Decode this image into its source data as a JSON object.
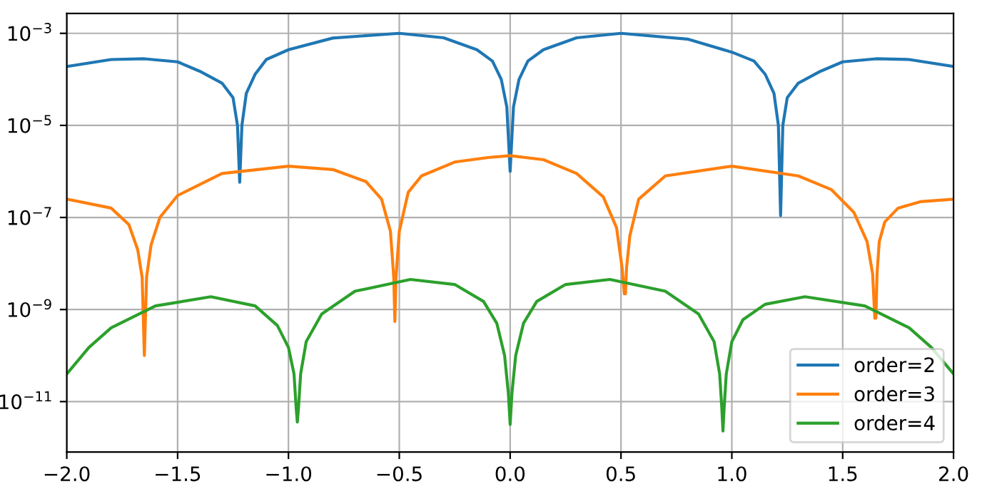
{
  "chart_data": {
    "type": "line",
    "xlim": [
      -2.0,
      2.0
    ],
    "xticks": [
      {
        "value": -2.0,
        "label": "−2.0"
      },
      {
        "value": -1.5,
        "label": "−1.5"
      },
      {
        "value": -1.0,
        "label": "−1.0"
      },
      {
        "value": -0.5,
        "label": "−0.5"
      },
      {
        "value": 0.0,
        "label": "0.0"
      },
      {
        "value": 0.5,
        "label": "0.5"
      },
      {
        "value": 1.0,
        "label": "1.0"
      },
      {
        "value": 1.5,
        "label": "1.5"
      },
      {
        "value": 2.0,
        "label": "2.0"
      }
    ],
    "ylim": [
      8e-13,
      0.0027
    ],
    "log": "y",
    "yticks": [
      {
        "value": 0.001,
        "label": "10$^{−3}$"
      },
      {
        "value": 1e-05,
        "label": "10$^{−5}$"
      },
      {
        "value": 1e-07,
        "label": "10$^{−7}$"
      },
      {
        "value": 1e-09,
        "label": "10$^{−9}$"
      },
      {
        "value": 1e-11,
        "label": "10$^{−11}$"
      }
    ],
    "grid": true,
    "legend": "bottom right",
    "line_style": "solid",
    "marker": "none",
    "series": [
      {
        "name": "order=2",
        "color": "#1f77b4",
        "x": [
          -2.0,
          -1.8,
          -1.65,
          -1.5,
          -1.4,
          -1.3,
          -1.25,
          -1.23,
          -1.22,
          -1.21,
          -1.19,
          -1.15,
          -1.1,
          -1.0,
          -0.8,
          -0.5,
          -0.3,
          -0.15,
          -0.08,
          -0.04,
          -0.015,
          0.0,
          0.015,
          0.04,
          0.08,
          0.15,
          0.3,
          0.5,
          0.8,
          1.0,
          1.1,
          1.15,
          1.19,
          1.21,
          1.22,
          1.23,
          1.25,
          1.3,
          1.4,
          1.5,
          1.65,
          1.8,
          2.0
        ],
        "values": [
          0.00019,
          0.00027,
          0.00028,
          0.00024,
          0.00015,
          8.3e-05,
          4e-05,
          1e-05,
          5.8e-07,
          1e-05,
          5e-05,
          0.00013,
          0.00027,
          0.00044,
          0.00079,
          0.001,
          0.0008,
          0.00044,
          0.00025,
          0.0001,
          2.5e-05,
          1e-06,
          2.5e-05,
          0.0001,
          0.00025,
          0.00044,
          0.0008,
          0.001,
          0.00075,
          0.00039,
          0.00025,
          0.00013,
          5e-05,
          1e-05,
          1.1e-07,
          1e-05,
          4e-05,
          8.3e-05,
          0.00015,
          0.00024,
          0.00028,
          0.00027,
          0.00019
        ]
      },
      {
        "name": "order=3",
        "color": "#ff7f0e",
        "x": [
          -2.0,
          -1.8,
          -1.72,
          -1.68,
          -1.66,
          -1.65,
          -1.64,
          -1.62,
          -1.58,
          -1.5,
          -1.3,
          -1.0,
          -0.8,
          -0.65,
          -0.58,
          -0.54,
          -0.525,
          -0.52,
          -0.515,
          -0.5,
          -0.46,
          -0.4,
          -0.25,
          -0.1,
          0.0,
          0.15,
          0.3,
          0.42,
          0.48,
          0.505,
          0.515,
          0.52,
          0.525,
          0.54,
          0.58,
          0.7,
          1.0,
          1.3,
          1.45,
          1.55,
          1.61,
          1.635,
          1.645,
          1.65,
          1.655,
          1.665,
          1.69,
          1.75,
          1.85,
          2.0
        ],
        "values": [
          2.5e-07,
          1.6e-07,
          7e-08,
          2e-08,
          5e-09,
          1e-10,
          5e-09,
          2.5e-08,
          1e-07,
          3e-07,
          9e-07,
          1.3e-06,
          1.1e-06,
          6e-07,
          2.5e-07,
          5e-08,
          5e-09,
          5.5e-10,
          5e-09,
          5e-08,
          3.5e-07,
          8e-07,
          1.6e-06,
          2e-06,
          2.2e-06,
          1.8e-06,
          9e-07,
          2.8e-07,
          6e-08,
          8e-09,
          2.2e-09,
          2.2e-09,
          8e-09,
          4e-08,
          2.5e-07,
          8e-07,
          1.3e-06,
          8e-07,
          4e-07,
          1.3e-07,
          3e-08,
          6e-09,
          6.5e-10,
          6.5e-10,
          6e-09,
          3e-08,
          8e-08,
          1.6e-07,
          2.2e-07,
          2.5e-07
        ]
      },
      {
        "name": "order=4",
        "color": "#2ca02c",
        "x": [
          -2.0,
          -1.9,
          -1.8,
          -1.6,
          -1.35,
          -1.15,
          -1.05,
          -1.0,
          -0.975,
          -0.965,
          -0.96,
          -0.955,
          -0.945,
          -0.92,
          -0.85,
          -0.7,
          -0.45,
          -0.25,
          -0.12,
          -0.06,
          -0.025,
          -0.008,
          0.0,
          0.008,
          0.025,
          0.06,
          0.12,
          0.25,
          0.45,
          0.7,
          0.85,
          0.92,
          0.945,
          0.955,
          0.96,
          0.965,
          0.975,
          1.0,
          1.05,
          1.15,
          1.33,
          1.6,
          1.8,
          1.9,
          2.0
        ],
        "values": [
          4e-11,
          1.5e-10,
          4e-10,
          1.2e-09,
          1.9e-09,
          1.2e-09,
          4.5e-10,
          1.5e-10,
          4e-11,
          7e-12,
          3.6e-12,
          7e-12,
          4e-11,
          2e-10,
          8e-10,
          2.5e-09,
          4.5e-09,
          3.5e-09,
          1.5e-09,
          5e-10,
          1e-10,
          1.5e-11,
          3.2e-12,
          1.5e-11,
          1e-10,
          5e-10,
          1.5e-09,
          3.5e-09,
          4.5e-09,
          2.5e-09,
          8e-10,
          2e-10,
          4e-11,
          7e-12,
          2.3e-12,
          7e-12,
          4e-11,
          2e-10,
          6e-10,
          1.3e-09,
          1.9e-09,
          1.2e-09,
          4e-10,
          1.5e-10,
          4e-11
        ]
      }
    ]
  }
}
